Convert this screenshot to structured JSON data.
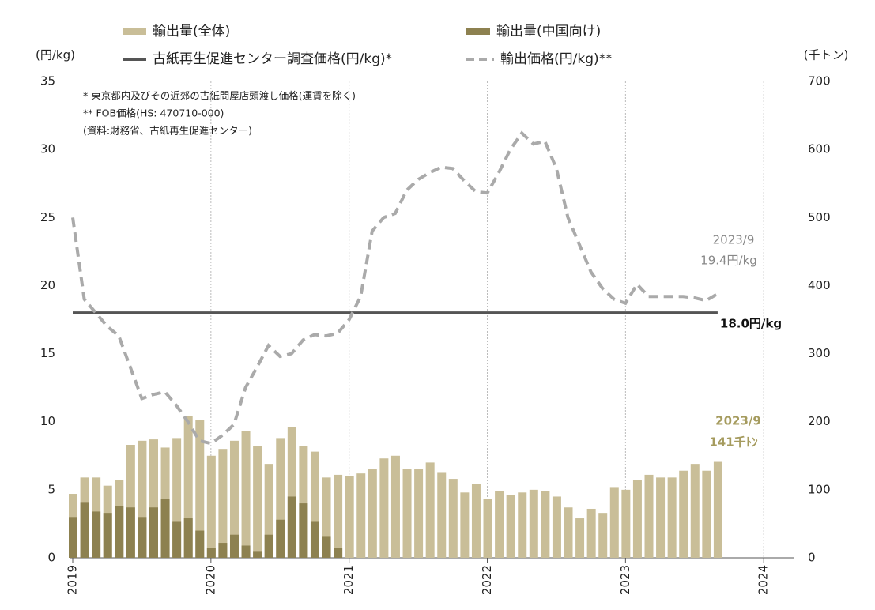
{
  "chart_data": {
    "type": "bar",
    "y_label": "(円/kg)",
    "y2_label": "(千トン)",
    "legend": "top",
    "notes": [
      "* 東京都内及びその近郊の古紙問屋店頭渡し価格(運賃を除く)",
      "** FOB価格(HS: 470710-000)",
      "(資料:財務省、古紙再生促進センター)"
    ],
    "annotations": [
      "2023/9",
      "19.4円/kg",
      "18.0円/kg",
      "2023/9",
      "141千ﾄﾝ"
    ],
    "categories": [
      "2019",
      null,
      null,
      null,
      null,
      null,
      null,
      null,
      null,
      null,
      null,
      null,
      "2020",
      null,
      null,
      null,
      null,
      null,
      null,
      null,
      null,
      null,
      null,
      null,
      "2021",
      null,
      null,
      null,
      null,
      null,
      null,
      null,
      null,
      null,
      null,
      null,
      "2022",
      null,
      null,
      null,
      null,
      null,
      null,
      null,
      null,
      null,
      null,
      null,
      "2023",
      null,
      null,
      null,
      null,
      null,
      null,
      null,
      null,
      null,
      null,
      null,
      "2024"
    ],
    "ylim": [
      0,
      35
    ],
    "yticks": [
      0,
      5,
      10,
      15,
      20,
      25,
      30,
      35
    ],
    "y2lim": [
      0,
      700
    ],
    "y2ticks": [
      0,
      100,
      200,
      300,
      400,
      500,
      600,
      700
    ],
    "series": [
      {
        "name": "輸出量(全体)",
        "type": "bar",
        "axis": "y2",
        "color": "#c9be98",
        "values": [
          94,
          118,
          118,
          106,
          114,
          166,
          172,
          174,
          162,
          176,
          208,
          202,
          150,
          160,
          172,
          186,
          164,
          138,
          176,
          192,
          164,
          156,
          118,
          122,
          120,
          124,
          130,
          146,
          150,
          130,
          130,
          140,
          126,
          116,
          96,
          108,
          86,
          98,
          92,
          96,
          100,
          98,
          90,
          74,
          58,
          72,
          66,
          104,
          100,
          114,
          122,
          118,
          118,
          128,
          138,
          128,
          141,
          null,
          null,
          null,
          null
        ]
      },
      {
        "name": "輸出量(中国向け)",
        "type": "bar",
        "axis": "y2",
        "color": "#8d8150",
        "values": [
          60,
          82,
          68,
          66,
          76,
          74,
          60,
          74,
          86,
          54,
          58,
          40,
          14,
          22,
          34,
          18,
          10,
          34,
          56,
          90,
          80,
          54,
          32,
          14,
          null,
          null,
          null,
          null,
          null,
          null,
          null,
          null,
          null,
          null,
          null,
          null,
          null,
          null,
          null,
          null,
          null,
          null,
          null,
          null,
          null,
          null,
          null,
          null,
          null,
          null,
          null,
          null,
          null,
          null,
          null,
          null,
          null,
          null,
          null,
          null,
          null
        ]
      },
      {
        "name": "古紙再生促進センター調査価格(円/kg)*",
        "type": "line",
        "axis": "y",
        "color": "#555555",
        "values": [
          18,
          18,
          18,
          18,
          18,
          18,
          18,
          18,
          18,
          18,
          18,
          18,
          18,
          18,
          18,
          18,
          18,
          18,
          18,
          18,
          18,
          18,
          18,
          18,
          18,
          18,
          18,
          18,
          18,
          18,
          18,
          18,
          18,
          18,
          18,
          18,
          18,
          18,
          18,
          18,
          18,
          18,
          18,
          18,
          18,
          18,
          18,
          18,
          18,
          18,
          18,
          18,
          18,
          18,
          18,
          18,
          18,
          null,
          null,
          null,
          null
        ]
      },
      {
        "name": "輸出価格(円/kg)**",
        "type": "line",
        "dashed": true,
        "axis": "y",
        "color": "#aaaaaa",
        "values": [
          25,
          19,
          18,
          17,
          16.3,
          14,
          11.7,
          12,
          12.2,
          11.2,
          10,
          8.6,
          8.4,
          9,
          9.8,
          12.5,
          14,
          15.6,
          14.8,
          15,
          16,
          16.4,
          16.3,
          16.5,
          17.5,
          19.2,
          24,
          25,
          25.3,
          27,
          27.8,
          28.3,
          28.7,
          28.6,
          27.7,
          26.9,
          26.8,
          28.3,
          30,
          31.2,
          30.4,
          30.6,
          28.6,
          25,
          23,
          21,
          19.8,
          19,
          18.7,
          20.1,
          19.2,
          19.2,
          19.2,
          19.2,
          19.1,
          18.9,
          19.4,
          null,
          null,
          null,
          null
        ]
      }
    ]
  }
}
